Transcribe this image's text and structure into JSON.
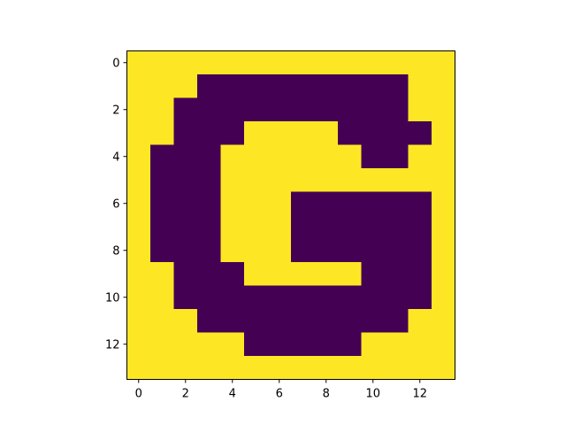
{
  "chart_data": {
    "type": "heatmap",
    "title": "",
    "xlabel": "",
    "ylabel": "",
    "colormap": "viridis",
    "colors": {
      "low": "#440154",
      "high": "#fde725"
    },
    "xlim": [
      -0.5,
      13.5
    ],
    "ylim": [
      13.5,
      -0.5
    ],
    "xticks": [
      0,
      2,
      4,
      6,
      8,
      10,
      12
    ],
    "yticks": [
      0,
      2,
      4,
      6,
      8,
      10,
      12
    ],
    "grid": false,
    "legend": "none",
    "values": [
      [
        1,
        1,
        1,
        1,
        1,
        1,
        1,
        1,
        1,
        1,
        1,
        1,
        1,
        1
      ],
      [
        1,
        1,
        1,
        0,
        0,
        0,
        0,
        0,
        0,
        0,
        0,
        0,
        1,
        1
      ],
      [
        1,
        1,
        0,
        0,
        0,
        0,
        0,
        0,
        0,
        0,
        0,
        0,
        1,
        1
      ],
      [
        1,
        1,
        0,
        0,
        0,
        1,
        1,
        1,
        1,
        0,
        0,
        0,
        0,
        1
      ],
      [
        1,
        0,
        0,
        0,
        1,
        1,
        1,
        1,
        1,
        1,
        0,
        0,
        1,
        1
      ],
      [
        1,
        0,
        0,
        0,
        1,
        1,
        1,
        1,
        1,
        1,
        1,
        1,
        1,
        1
      ],
      [
        1,
        0,
        0,
        0,
        1,
        1,
        1,
        0,
        0,
        0,
        0,
        0,
        0,
        1
      ],
      [
        1,
        0,
        0,
        0,
        1,
        1,
        1,
        0,
        0,
        0,
        0,
        0,
        0,
        1
      ],
      [
        1,
        0,
        0,
        0,
        1,
        1,
        1,
        0,
        0,
        0,
        0,
        0,
        0,
        1
      ],
      [
        1,
        1,
        0,
        0,
        0,
        1,
        1,
        1,
        1,
        1,
        0,
        0,
        0,
        1
      ],
      [
        1,
        1,
        0,
        0,
        0,
        0,
        0,
        0,
        0,
        0,
        0,
        0,
        0,
        1
      ],
      [
        1,
        1,
        1,
        0,
        0,
        0,
        0,
        0,
        0,
        0,
        0,
        0,
        1,
        1
      ],
      [
        1,
        1,
        1,
        1,
        1,
        0,
        0,
        0,
        0,
        0,
        1,
        1,
        1,
        1
      ],
      [
        1,
        1,
        1,
        1,
        1,
        1,
        1,
        1,
        1,
        1,
        1,
        1,
        1,
        1
      ]
    ]
  }
}
